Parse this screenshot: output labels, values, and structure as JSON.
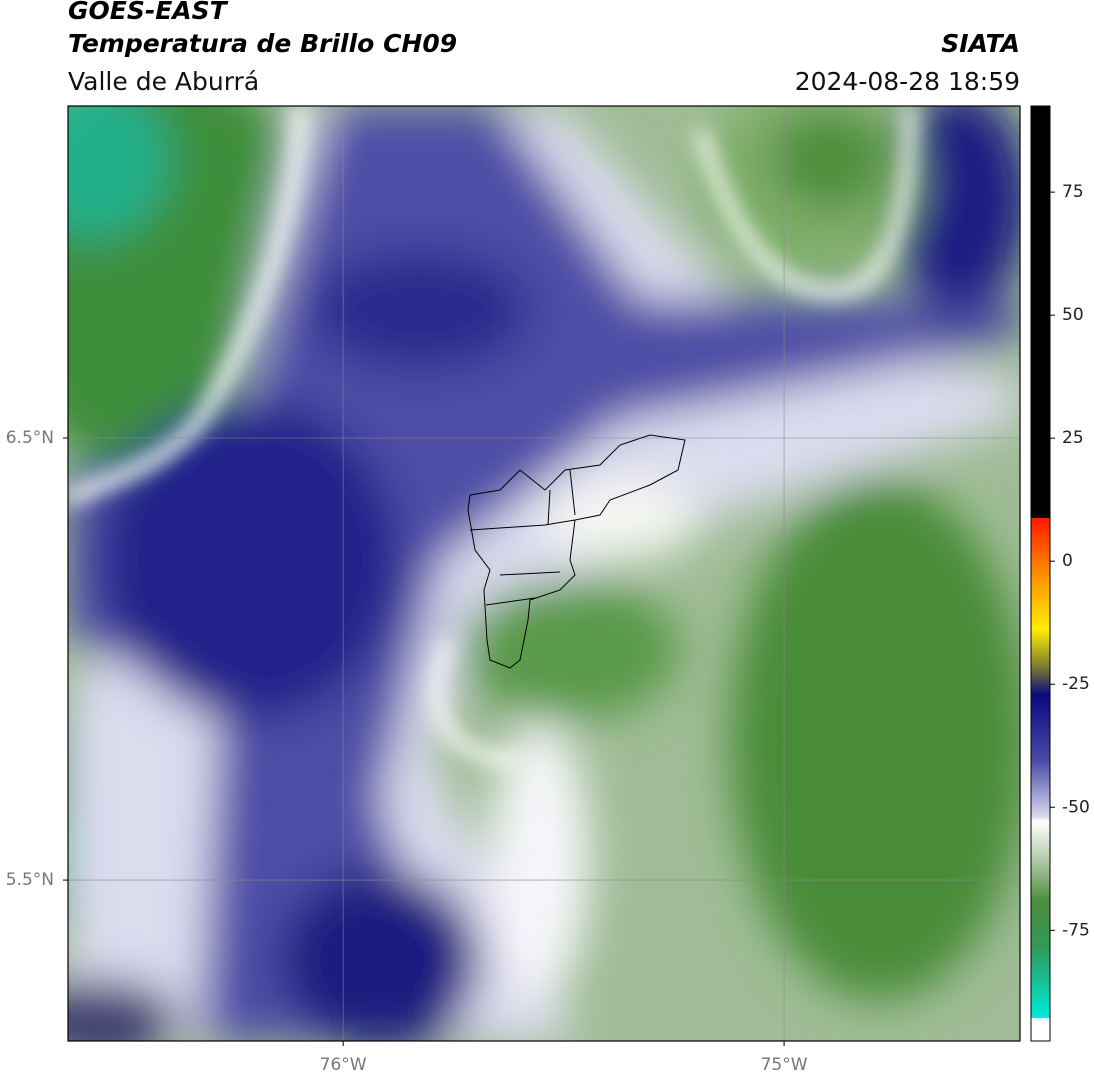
{
  "header": {
    "title": "GOES-EAST",
    "subtitle": "Temperatura de Brillo CH09",
    "region": "Valle de Aburrá",
    "source": "SIATA",
    "timestamp": "2024-08-28 18:59"
  },
  "map": {
    "latlim": [
      5.136,
      7.251
    ],
    "lonlim": [
      -76.624,
      -74.465
    ],
    "lat_ticks": [
      {
        "value": 6.5,
        "label": "6.5°N"
      },
      {
        "value": 5.5,
        "label": "5.5°N"
      }
    ],
    "lon_ticks": [
      {
        "value": -76,
        "label": "76°W"
      },
      {
        "value": -75,
        "label": "75°W"
      }
    ]
  },
  "colorbar": {
    "clim": [
      -97.5,
      92.5
    ],
    "ticks": [
      75,
      50,
      25,
      0,
      -25,
      -50,
      -75
    ]
  }
}
